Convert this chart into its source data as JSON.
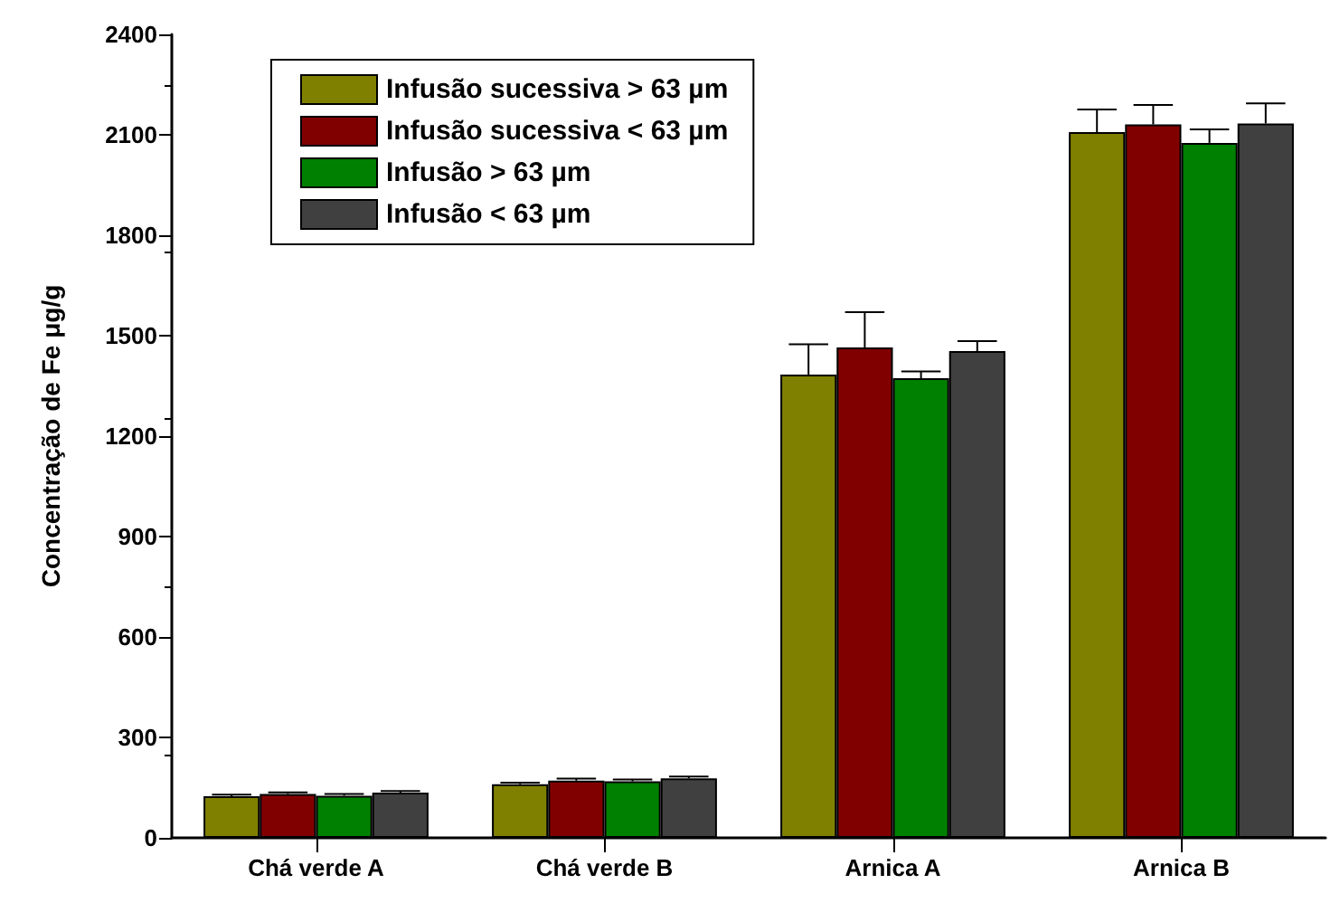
{
  "chart_data": {
    "type": "bar",
    "ylabel": "Concentração de Fe μg/g",
    "categories": [
      "Chá verde A",
      "Chá verde B",
      "Arnica A",
      "Arnica B"
    ],
    "series": [
      {
        "name": "Infusão sucessiva > 63 µm",
        "color": "#808000",
        "values": [
          124,
          160,
          1384,
          2108
        ],
        "errors": [
          5,
          5,
          90,
          68
        ]
      },
      {
        "name": "Infusão sucessiva < 63 µm",
        "color": "#800000",
        "values": [
          131,
          171,
          1465,
          2131
        ],
        "errors": [
          5,
          6,
          105,
          58
        ]
      },
      {
        "name": "Infusão > 63 µm",
        "color": "#008000",
        "values": [
          126,
          169,
          1373,
          2076
        ],
        "errors": [
          5,
          5,
          20,
          40
        ]
      },
      {
        "name": "Infusão < 63 µm",
        "color": "#404040",
        "values": [
          135,
          178,
          1454,
          2134
        ],
        "errors": [
          5,
          5,
          30,
          60
        ]
      }
    ],
    "ylim": [
      0,
      2400
    ],
    "yticks": [
      0,
      300,
      600,
      900,
      1200,
      1500,
      1800,
      2100,
      2400
    ],
    "grid": false,
    "legend": "top left"
  }
}
